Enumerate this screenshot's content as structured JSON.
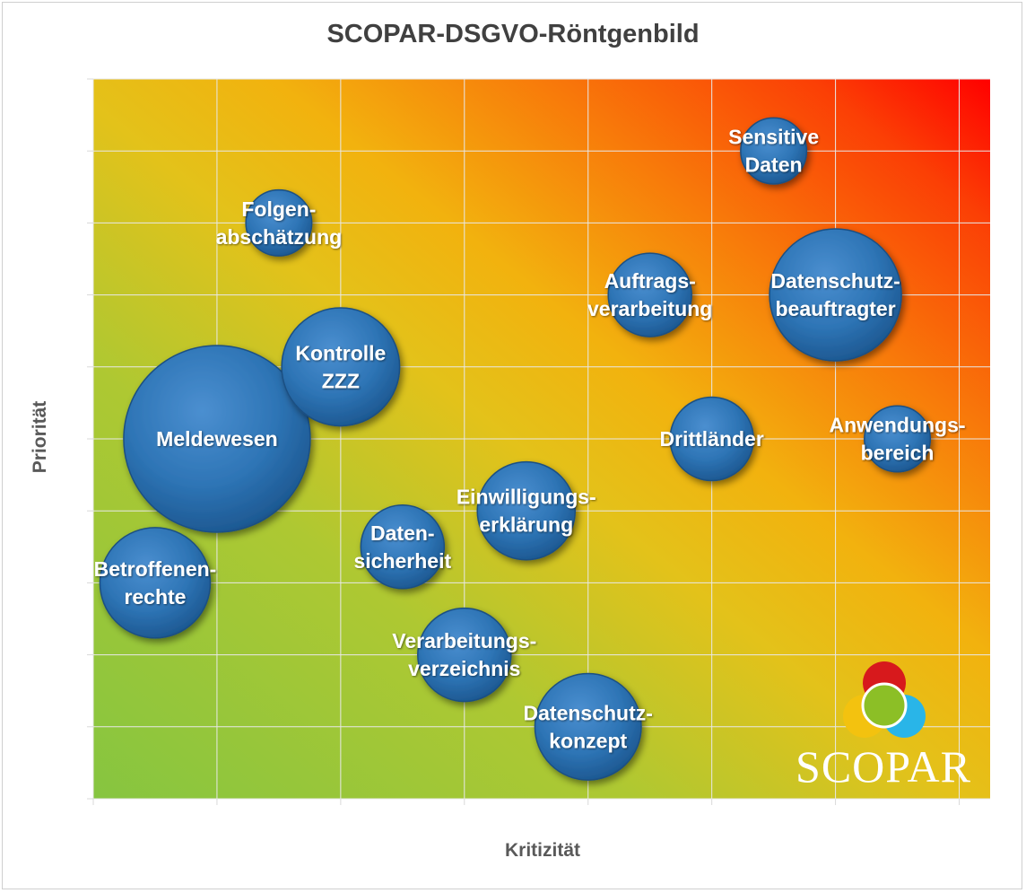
{
  "chart_data": {
    "type": "bubble",
    "title": "SCOPAR-DSGVO-Röntgenbild",
    "xlabel": "Kritizität",
    "ylabel": "Priorität",
    "xlim": [
      0,
      7.25
    ],
    "ylim": [
      0,
      10
    ],
    "grid": true,
    "background": "gradient green (low) to red (top-right)",
    "points": [
      {
        "label": "Sensitive\nDaten",
        "x": 5.5,
        "y": 9.0,
        "size": 0.5
      },
      {
        "label": "Folgen-\nabschätzung",
        "x": 1.5,
        "y": 8.0,
        "size": 0.5
      },
      {
        "label": "Auftrags-\nverarbeitung",
        "x": 4.5,
        "y": 7.0,
        "size": 0.8
      },
      {
        "label": "Datenschutz-\nbeauftragter",
        "x": 6.0,
        "y": 7.0,
        "size": 2.0
      },
      {
        "label": "Kontrolle\nZZZ",
        "x": 2.0,
        "y": 6.0,
        "size": 1.6
      },
      {
        "label": "Meldewesen",
        "x": 1.0,
        "y": 5.0,
        "size": 4.0
      },
      {
        "label": "Drittländer",
        "x": 5.0,
        "y": 5.0,
        "size": 0.8
      },
      {
        "label": "Anwendungs-\nbereich",
        "x": 6.5,
        "y": 5.0,
        "size": 0.5
      },
      {
        "label": "Einwilligungs-\nerklärung",
        "x": 3.5,
        "y": 4.0,
        "size": 1.1
      },
      {
        "label": "Daten-\nsicherheit",
        "x": 2.5,
        "y": 3.5,
        "size": 0.8
      },
      {
        "label": "Betroffenen-\nrechte",
        "x": 0.5,
        "y": 3.0,
        "size": 1.4
      },
      {
        "label": "Verarbeitungs-\nverzeichnis",
        "x": 3.0,
        "y": 2.0,
        "size": 1.0
      },
      {
        "label": "Datenschutz-\nkonzept",
        "x": 4.0,
        "y": 1.0,
        "size": 1.3
      }
    ]
  },
  "logo": {
    "text": "SCOPAR",
    "colors": [
      "#d7191c",
      "#f3c20f",
      "#29b5e8",
      "#8cbf26"
    ]
  },
  "colors": {
    "bubble": "#2e75b6",
    "grid": "#e8e8e8",
    "label": "#ffffff"
  }
}
